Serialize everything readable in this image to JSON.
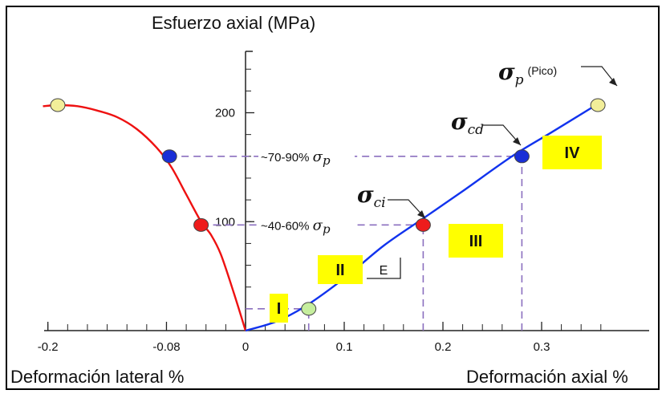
{
  "chart_data": {
    "type": "line",
    "y_axis_title": "Esfuerzo axial (MPa)",
    "x_left_title": "Deformación lateral %",
    "x_right_title": "Deformación axial %",
    "y_ticks": [
      {
        "value": 200,
        "label": "200"
      },
      {
        "value": 100,
        "label": "100"
      }
    ],
    "x_ticks": [
      {
        "value": -0.2,
        "label": "-0.2"
      },
      {
        "value": -0.08,
        "label": "-0.08"
      },
      {
        "value": 0,
        "label": "0"
      },
      {
        "value": 0.1,
        "label": "0.1"
      },
      {
        "value": 0.2,
        "label": "0.2"
      },
      {
        "value": 0.3,
        "label": "0.3"
      }
    ],
    "series": [
      {
        "color": "#ee1111",
        "x": [
          0,
          -0.012,
          -0.025,
          -0.035,
          -0.045,
          -0.06,
          -0.075,
          -0.09,
          -0.11,
          -0.13,
          -0.15,
          -0.17,
          -0.19,
          -0.205
        ],
        "y": [
          0,
          35,
          70,
          88,
          100,
          125,
          150,
          168,
          185,
          196,
          202,
          206,
          207,
          206
        ]
      },
      {
        "color": "#1133ee",
        "x": [
          0,
          0.03,
          0.06,
          0.1,
          0.14,
          0.18,
          0.22,
          0.27,
          0.31,
          0.355
        ],
        "y": [
          0,
          8,
          22,
          48,
          78,
          103,
          128,
          160,
          182,
          207
        ]
      }
    ],
    "points": [
      {
        "x": -0.19,
        "y": 207,
        "color": "#f2ee99"
      },
      {
        "x": -0.077,
        "y": 160,
        "color": "#1a2fd6"
      },
      {
        "x": -0.045,
        "y": 97,
        "color": "#ee1c1c"
      },
      {
        "x": 0.064,
        "y": 20,
        "color": "#c6ee9e"
      },
      {
        "x": 0.18,
        "y": 97,
        "color": "#ee1c1c"
      },
      {
        "x": 0.28,
        "y": 160,
        "color": "#1a2fd6"
      },
      {
        "x": 0.357,
        "y": 207,
        "color": "#f2ee99"
      }
    ],
    "guide_lines": {
      "horizontal": [
        {
          "y": 160,
          "x_from": -0.077,
          "x_to": 0.28
        },
        {
          "y": 97,
          "x_from": -0.045,
          "x_to": 0.18
        },
        {
          "y": 20,
          "x_from": 0,
          "x_to": 0.064
        }
      ],
      "vertical": [
        {
          "x": 0.28,
          "y_from": 0,
          "y_to": 160
        },
        {
          "x": 0.18,
          "y_from": 0,
          "y_to": 97
        },
        {
          "x": 0.064,
          "y_from": 0,
          "y_to": 20
        }
      ]
    },
    "annotations": {
      "level_high": {
        "prefix": "~70-90% ",
        "symbol": "σ",
        "sub": "p"
      },
      "level_mid": {
        "prefix": "~40-60% ",
        "symbol": "σ",
        "sub": "p"
      },
      "sigma_ci": {
        "symbol": "σ",
        "sub": "ci"
      },
      "sigma_cd": {
        "symbol": "σ",
        "sub": "cd"
      },
      "sigma_p": {
        "symbol": "σ",
        "sub": "p",
        "suffix": "(Pico)"
      },
      "modulus": "E"
    },
    "stages": [
      {
        "label": "I",
        "color": "#ffff00"
      },
      {
        "label": "II",
        "color": "#ffff00"
      },
      {
        "label": "III",
        "color": "#ffff00"
      },
      {
        "label": "IV",
        "color": "#ffff00"
      }
    ],
    "xlim": [
      -0.21,
      0.4
    ],
    "ylim": [
      0,
      250
    ]
  }
}
